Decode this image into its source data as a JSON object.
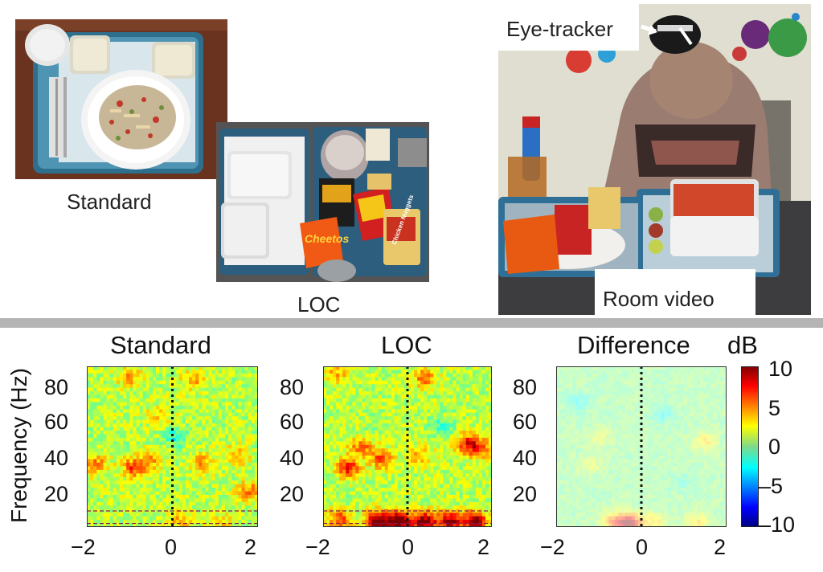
{
  "photos": {
    "standard_caption": "Standard",
    "loc_caption": "LOC",
    "eyetracker_label": "Eye-tracker",
    "room_video_label": "Room video",
    "bag_text": "Cheetos",
    "box_text": "Chicken Nuggets"
  },
  "chart_data": [
    {
      "type": "heatmap",
      "title": "Standard",
      "ylabel": "Frequency (Hz)",
      "x_ticks": [
        "−2",
        "0",
        "2"
      ],
      "y_ticks": [
        "80",
        "60",
        "40",
        "20"
      ],
      "xlim": [
        -2,
        2
      ],
      "ylim": [
        0,
        90
      ],
      "event_line_x": 0,
      "band_lines_hz": [
        2,
        9
      ],
      "colorscale": "jet",
      "clim": [
        -10,
        10
      ],
      "hotspots": [
        {
          "t": -0.9,
          "f": 33,
          "dB": 5
        },
        {
          "t": -1.8,
          "f": 35,
          "dB": 4
        },
        {
          "t": -0.5,
          "f": 38,
          "dB": 3
        },
        {
          "t": 0.7,
          "f": 36,
          "dB": 3
        },
        {
          "t": 1.5,
          "f": 40,
          "dB": 3
        },
        {
          "t": 1.8,
          "f": 20,
          "dB": 4
        },
        {
          "t": -1.0,
          "f": 84,
          "dB": 3
        },
        {
          "t": 0.5,
          "f": 82,
          "dB": 3
        },
        {
          "t": -0.3,
          "f": 63,
          "dB": 2
        },
        {
          "t": 0.2,
          "f": 3,
          "dB": 3
        },
        {
          "t": 1.2,
          "f": 3,
          "dB": 2
        },
        {
          "t": 0.1,
          "f": 50,
          "dB": -3
        }
      ]
    },
    {
      "type": "heatmap",
      "title": "LOC",
      "ylabel": "",
      "x_ticks": [
        "−2",
        "0",
        "2"
      ],
      "y_ticks": [
        "80",
        "60",
        "40",
        "20"
      ],
      "xlim": [
        -2,
        2
      ],
      "ylim": [
        0,
        90
      ],
      "event_line_x": 0,
      "band_lines_hz": [
        2,
        9
      ],
      "colorscale": "jet",
      "clim": [
        -10,
        10
      ],
      "hotspots": [
        {
          "t": -0.7,
          "f": 3,
          "dB": 10
        },
        {
          "t": -0.2,
          "f": 3,
          "dB": 10
        },
        {
          "t": 0.4,
          "f": 3,
          "dB": 9
        },
        {
          "t": 1.0,
          "f": 3,
          "dB": 8
        },
        {
          "t": 1.6,
          "f": 3,
          "dB": 9
        },
        {
          "t": -1.6,
          "f": 4,
          "dB": 5
        },
        {
          "t": -1.4,
          "f": 33,
          "dB": 6
        },
        {
          "t": -0.6,
          "f": 38,
          "dB": 5
        },
        {
          "t": -1.1,
          "f": 45,
          "dB": 4
        },
        {
          "t": 1.4,
          "f": 47,
          "dB": 5
        },
        {
          "t": 1.7,
          "f": 44,
          "dB": 5
        },
        {
          "t": 0.3,
          "f": 40,
          "dB": 3
        },
        {
          "t": 0.4,
          "f": 83,
          "dB": 4
        },
        {
          "t": -1.7,
          "f": 86,
          "dB": 3
        },
        {
          "t": 0.8,
          "f": 56,
          "dB": -3
        }
      ]
    },
    {
      "type": "heatmap",
      "title": "Difference",
      "ylabel": "",
      "x_ticks": [
        "−2",
        "0",
        "2"
      ],
      "y_ticks": [
        "80",
        "60",
        "40",
        "20"
      ],
      "xlim": [
        -2,
        2
      ],
      "ylim": [
        0,
        90
      ],
      "event_line_x": 0,
      "colorscale": "jet",
      "clim": [
        -10,
        10
      ],
      "colorbar": {
        "label": "dB",
        "ticks": [
          "10",
          "5",
          "0",
          "–5",
          "–10"
        ]
      },
      "hotspots": [
        {
          "t": -0.3,
          "f": 2,
          "dB": 10
        },
        {
          "t": -0.7,
          "f": 3,
          "dB": 4
        },
        {
          "t": 0.3,
          "f": 3,
          "dB": 3
        },
        {
          "t": 1.3,
          "f": 3,
          "dB": 3
        },
        {
          "t": 1.5,
          "f": 48,
          "dB": 3
        },
        {
          "t": -1.0,
          "f": 50,
          "dB": 2
        },
        {
          "t": -1.2,
          "f": 35,
          "dB": 2
        },
        {
          "t": 0.5,
          "f": 63,
          "dB": -2
        },
        {
          "t": -1.5,
          "f": 70,
          "dB": -2
        },
        {
          "t": 1.0,
          "f": 25,
          "dB": -1
        }
      ]
    }
  ]
}
